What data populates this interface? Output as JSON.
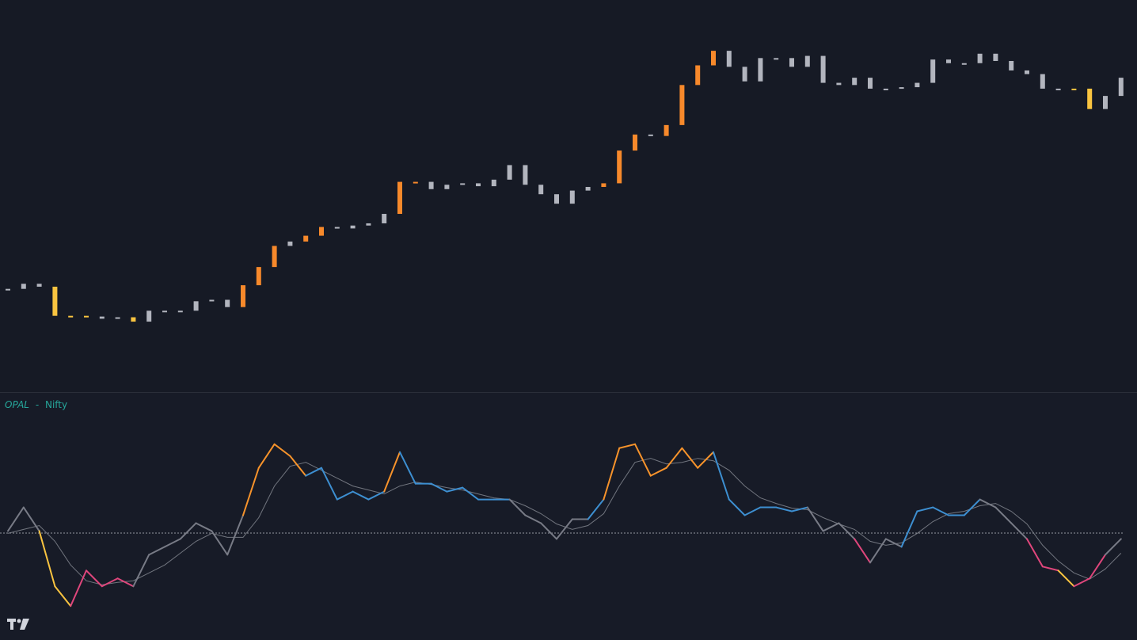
{
  "indicator": {
    "name": "OPAL",
    "separator": "-",
    "symbol": "Nifty"
  },
  "chart_data": [
    {
      "type": "candlestick",
      "values": [
        120,
        127,
        123,
        83,
        83,
        82,
        79,
        81,
        75,
        90,
        90,
        90,
        103,
        105,
        95,
        125,
        150,
        179,
        185,
        193,
        205,
        203,
        207,
        210,
        223,
        267,
        267,
        257,
        263,
        265,
        261,
        270,
        290,
        263,
        250,
        237,
        255,
        260,
        265,
        310,
        332,
        330,
        345,
        400,
        427,
        447,
        425,
        405,
        437,
        437,
        425,
        440,
        403,
        400,
        410,
        395,
        395,
        397,
        403,
        435,
        430,
        430,
        443,
        433,
        420,
        415,
        395,
        395,
        395,
        367,
        385,
        410
      ],
      "colors": [
        "#b2b5be",
        "#b2b5be",
        "#b2b5be",
        "#f9c440",
        "#f9c440",
        "#f9c440",
        "#b2b5be",
        "#b2b5be",
        "#f9c440",
        "#b2b5be",
        "#b2b5be",
        "#b2b5be",
        "#b2b5be",
        "#b2b5be",
        "#b2b5be",
        "#f7892b",
        "#f7892b",
        "#f7892b",
        "#b2b5be",
        "#f7892b",
        "#f7892b",
        "#b2b5be",
        "#b2b5be",
        "#b2b5be",
        "#b2b5be",
        "#f7892b",
        "#f7892b",
        "#b2b5be",
        "#b2b5be",
        "#b2b5be",
        "#b2b5be",
        "#b2b5be",
        "#b2b5be",
        "#b2b5be",
        "#b2b5be",
        "#b2b5be",
        "#b2b5be",
        "#b2b5be",
        "#f7892b",
        "#f7892b",
        "#f7892b",
        "#b2b5be",
        "#f7892b",
        "#f7892b",
        "#f7892b",
        "#f7892b",
        "#b2b5be",
        "#b2b5be",
        "#b2b5be",
        "#b2b5be",
        "#b2b5be",
        "#b2b5be",
        "#b2b5be",
        "#b2b5be",
        "#b2b5be",
        "#b2b5be",
        "#b2b5be",
        "#b2b5be",
        "#b2b5be",
        "#b2b5be",
        "#b2b5be",
        "#b2b5be",
        "#b2b5be",
        "#b2b5be",
        "#b2b5be",
        "#b2b5be",
        "#b2b5be",
        "#b2b5be",
        "#f9c440",
        "#f9c440",
        "#b2b5be",
        "#b2b5be"
      ],
      "ylim": [
        0,
        495
      ]
    },
    {
      "type": "line",
      "values": [
        3,
        33,
        3,
        -67,
        -92,
        -47,
        -67,
        -57,
        -67,
        -27,
        -17,
        -7,
        13,
        3,
        -27,
        23,
        83,
        113,
        98,
        73,
        83,
        43,
        53,
        43,
        53,
        103,
        63,
        63,
        53,
        58,
        43,
        43,
        43,
        23,
        13,
        -7,
        18,
        18,
        43,
        108,
        113,
        73,
        83,
        108,
        83,
        103,
        43,
        23,
        33,
        33,
        28,
        33,
        3,
        13,
        -7,
        -37,
        -7,
        -17,
        28,
        33,
        23,
        23,
        43,
        33,
        13,
        -7,
        -42,
        -47,
        -67,
        -57,
        -27,
        -7
      ],
      "colors": [
        "#787b86",
        "#787b86",
        "#787b86",
        "#f9c440",
        "#f9c440",
        "#e0467c",
        "#e0467c",
        "#e0467c",
        "#e0467c",
        "#787b86",
        "#787b86",
        "#787b86",
        "#787b86",
        "#787b86",
        "#787b86",
        "#787b86",
        "#f7932b",
        "#f7932b",
        "#f7932b",
        "#f7932b",
        "#3d8fd1",
        "#3d8fd1",
        "#3d8fd1",
        "#3d8fd1",
        "#3d8fd1",
        "#f7932b",
        "#3d8fd1",
        "#3d8fd1",
        "#3d8fd1",
        "#3d8fd1",
        "#3d8fd1",
        "#3d8fd1",
        "#3d8fd1",
        "#787b86",
        "#787b86",
        "#787b86",
        "#787b86",
        "#787b86",
        "#3d8fd1",
        "#f7932b",
        "#f7932b",
        "#f7932b",
        "#f7932b",
        "#f7932b",
        "#f7932b",
        "#f7932b",
        "#3d8fd1",
        "#3d8fd1",
        "#3d8fd1",
        "#3d8fd1",
        "#3d8fd1",
        "#3d8fd1",
        "#787b86",
        "#787b86",
        "#787b86",
        "#e0467c",
        "#787b86",
        "#787b86",
        "#3d8fd1",
        "#3d8fd1",
        "#3d8fd1",
        "#3d8fd1",
        "#3d8fd1",
        "#787b86",
        "#787b86",
        "#787b86",
        "#e0467c",
        "#e0467c",
        "#f9c440",
        "#e0467c",
        "#e0467c",
        "#787b86"
      ],
      "signal": [
        0,
        5,
        10,
        -10,
        -40,
        -60,
        -65,
        -62,
        -60,
        -50,
        -40,
        -25,
        -10,
        0,
        -5,
        -5,
        20,
        60,
        85,
        90,
        80,
        70,
        60,
        55,
        50,
        60,
        65,
        62,
        58,
        55,
        50,
        45,
        43,
        35,
        25,
        12,
        5,
        10,
        25,
        60,
        90,
        95,
        88,
        90,
        95,
        92,
        80,
        60,
        45,
        38,
        32,
        30,
        20,
        12,
        5,
        -10,
        -15,
        -12,
        0,
        15,
        25,
        28,
        35,
        38,
        28,
        12,
        -15,
        -35,
        -50,
        -58,
        -45,
        -25
      ],
      "signal_color": "#8a8d96",
      "ylim": [
        -135,
        178
      ]
    }
  ]
}
